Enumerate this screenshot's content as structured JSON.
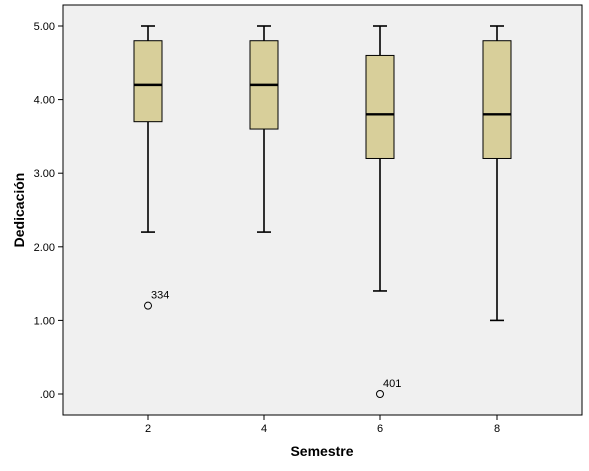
{
  "chart_data": {
    "type": "boxplot",
    "xlabel": "Semestre",
    "ylabel": "Dedicación",
    "ylim": [
      -0.4,
      5.2
    ],
    "y_ticks": [
      {
        "value": 0,
        "label": ".00"
      },
      {
        "value": 1,
        "label": "1.00"
      },
      {
        "value": 2,
        "label": "2.00"
      },
      {
        "value": 3,
        "label": "3.00"
      },
      {
        "value": 4,
        "label": "4.00"
      },
      {
        "value": 5,
        "label": "5.00"
      }
    ],
    "grid": false,
    "box_color": "#d8cf9a",
    "plot_background": "#f0f0f0",
    "categories": [
      "2",
      "4",
      "6",
      "8"
    ],
    "boxes": [
      {
        "category": "2",
        "min": 2.2,
        "q1": 3.7,
        "median": 4.2,
        "q3": 4.8,
        "max": 5.0,
        "outliers": [
          {
            "value": 1.2,
            "label": "334"
          }
        ]
      },
      {
        "category": "4",
        "min": 2.2,
        "q1": 3.6,
        "median": 4.2,
        "q3": 4.8,
        "max": 5.0,
        "outliers": []
      },
      {
        "category": "6",
        "min": 1.4,
        "q1": 3.2,
        "median": 3.8,
        "q3": 4.6,
        "max": 5.0,
        "outliers": [
          {
            "value": 0.0,
            "label": "401"
          }
        ]
      },
      {
        "category": "8",
        "min": 1.0,
        "q1": 3.2,
        "median": 3.8,
        "q3": 4.8,
        "max": 5.0,
        "outliers": []
      }
    ]
  }
}
